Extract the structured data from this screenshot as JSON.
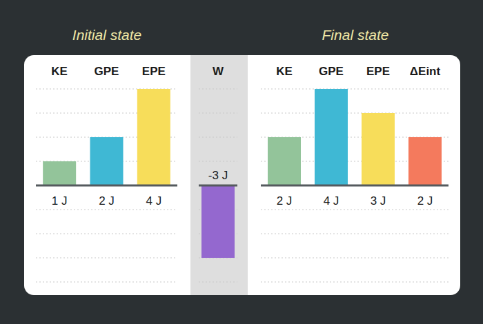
{
  "chart_data": [
    {
      "type": "bar",
      "title": "Initial state",
      "categories": [
        "KE",
        "GPE",
        "EPE"
      ],
      "values": [
        1,
        2,
        4
      ],
      "value_labels": [
        "1 J",
        "2 J",
        "4 J"
      ],
      "colors": [
        "#93c49a",
        "#3fb8d4",
        "#f7dd5a"
      ],
      "ylim": [
        -4,
        4
      ],
      "yticks": [
        -4,
        -3,
        -2,
        -1,
        0,
        1,
        2,
        3,
        4
      ],
      "grid": true,
      "tick_labels": false,
      "data_labels": true
    },
    {
      "type": "bar",
      "categories": [
        "W"
      ],
      "values": [
        -3
      ],
      "value_labels": [
        "-3 J"
      ],
      "colors": [
        "#9468cf"
      ],
      "ylim": [
        -4,
        4
      ],
      "yticks": [
        -4,
        -3,
        -2,
        -1,
        0,
        1,
        2,
        3,
        4
      ],
      "grid": true,
      "tick_labels": false,
      "data_labels": true
    },
    {
      "type": "bar",
      "title": "Final state",
      "categories": [
        "KE",
        "GPE",
        "EPE",
        "ΔEint"
      ],
      "values": [
        2,
        4,
        3,
        2
      ],
      "value_labels": [
        "2 J",
        "4 J",
        "3 J",
        "2 J"
      ],
      "colors": [
        "#93c49a",
        "#3fb8d4",
        "#f7dd5a",
        "#f47a5d"
      ],
      "ylim": [
        -4,
        4
      ],
      "yticks": [
        -4,
        -3,
        -2,
        -1,
        0,
        1,
        2,
        3,
        4
      ],
      "grid": true,
      "tick_labels": false,
      "data_labels": true
    }
  ]
}
